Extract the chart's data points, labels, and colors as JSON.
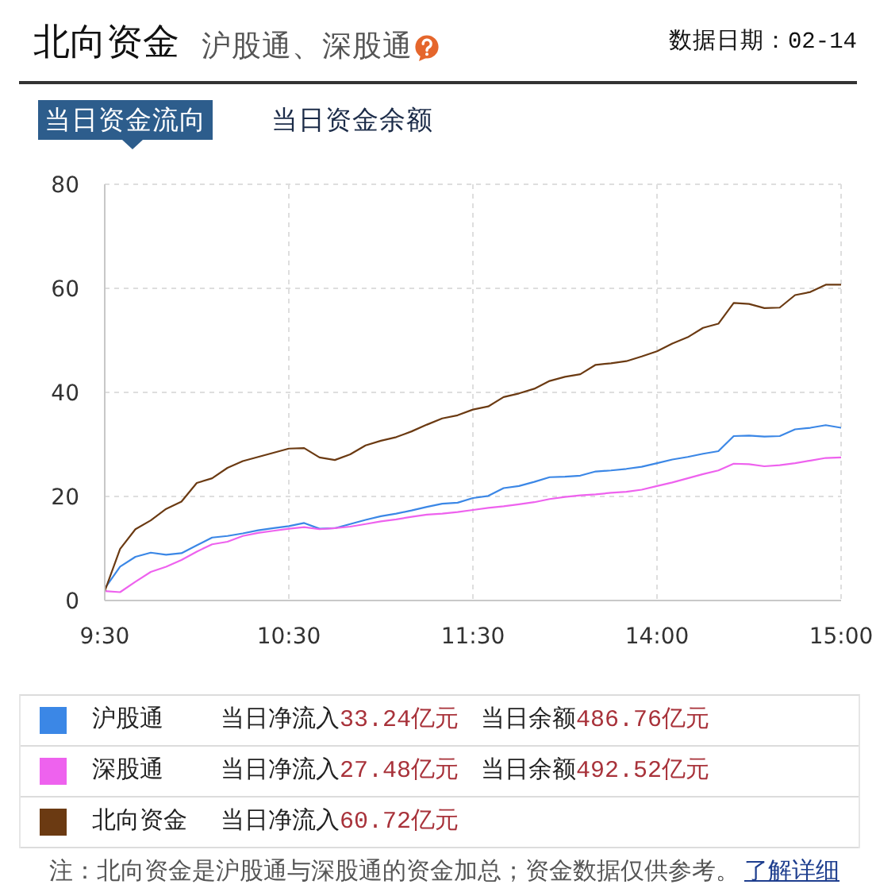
{
  "chart_data": {
    "type": "line",
    "title": "北向资金",
    "subtitle": "沪股通、深股通",
    "categories": [
      "9:30",
      null,
      null,
      null,
      null,
      null,
      null,
      null,
      null,
      null,
      null,
      null,
      "10:30",
      null,
      null,
      null,
      null,
      null,
      null,
      null,
      null,
      null,
      null,
      null,
      "11:30",
      null,
      null,
      null,
      null,
      null,
      null,
      null,
      null,
      null,
      null,
      null,
      "14:00",
      null,
      null,
      null,
      null,
      null,
      null,
      null,
      null,
      null,
      null,
      null,
      "15:00"
    ],
    "ylim": [
      0,
      80
    ],
    "yticks": [
      0,
      20,
      40,
      60,
      80
    ],
    "grid": true,
    "legend": "bottom",
    "series": [
      {
        "name": "沪股通",
        "color": "#3b87e6",
        "values": [
          2.3,
          6.5,
          8.4,
          9.2,
          8.8,
          9.1,
          10.6,
          12.1,
          12.4,
          12.9,
          13.5,
          13.9,
          14.3,
          14.9,
          13.8,
          13.9,
          14.7,
          15.5,
          16.2,
          16.7,
          17.3,
          18.0,
          18.6,
          18.8,
          19.7,
          20.1,
          21.6,
          22.0,
          22.8,
          23.7,
          23.8,
          24.0,
          24.8,
          25.0,
          25.3,
          25.7,
          26.4,
          27.1,
          27.6,
          28.2,
          28.7,
          31.6,
          31.7,
          31.5,
          31.6,
          32.9,
          33.2,
          33.7,
          33.2
        ]
      },
      {
        "name": "深股通",
        "color": "#ee62ee",
        "values": [
          1.8,
          1.6,
          3.6,
          5.5,
          6.5,
          7.8,
          9.4,
          10.8,
          11.3,
          12.4,
          13.0,
          13.4,
          13.8,
          14.1,
          13.7,
          13.9,
          14.2,
          14.7,
          15.2,
          15.6,
          16.1,
          16.5,
          16.7,
          17.0,
          17.4,
          17.8,
          18.1,
          18.5,
          18.9,
          19.5,
          19.9,
          20.2,
          20.4,
          20.7,
          20.9,
          21.3,
          22.0,
          22.7,
          23.5,
          24.3,
          25.0,
          26.3,
          26.2,
          25.8,
          26.0,
          26.4,
          26.9,
          27.4,
          27.5
        ]
      },
      {
        "name": "北向资金",
        "color": "#6b3a12",
        "values": [
          1.8,
          9.9,
          13.7,
          15.4,
          17.6,
          19.0,
          22.6,
          23.5,
          25.5,
          26.8,
          27.6,
          28.4,
          29.2,
          29.3,
          27.5,
          27.0,
          28.1,
          29.8,
          30.7,
          31.4,
          32.5,
          33.8,
          35.0,
          35.6,
          36.7,
          37.3,
          39.1,
          39.8,
          40.7,
          42.2,
          43.0,
          43.5,
          45.3,
          45.6,
          46.0,
          46.9,
          47.9,
          49.4,
          50.6,
          52.4,
          53.2,
          57.2,
          57.0,
          56.2,
          56.3,
          58.7,
          59.3,
          60.7,
          60.7
        ]
      }
    ],
    "annotations": [
      "数据日期：02-14",
      "当日资金流向",
      "当日资金余额",
      "当日净流入33.24亿元",
      "当日余额486.76亿元",
      "当日净流入27.48亿元",
      "当日余额492.52亿元",
      "当日净流入60.72亿元",
      "注：北向资金是沪股通与深股通的资金加总；资金数据仅供参考。",
      "了解详细"
    ]
  }
}
